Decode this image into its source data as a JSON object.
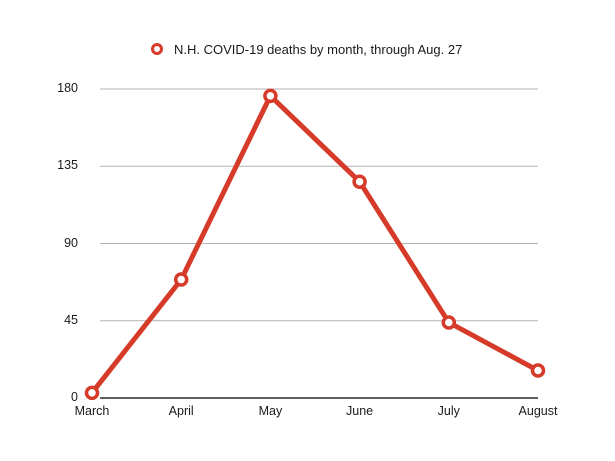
{
  "legend": {
    "label": "N.H. COVID-19 deaths by month, through Aug. 27",
    "color": "#d63b2a"
  },
  "y_axis": {
    "ticks": [
      "0",
      "45",
      "90",
      "135",
      "180"
    ]
  },
  "x_axis": {
    "ticks": [
      "March",
      "April",
      "May",
      "June",
      "July",
      "August"
    ]
  },
  "colors": {
    "line": "#d63b2a",
    "gridline": "#b3b3b3",
    "axis": "#2a2a2a"
  },
  "chart_data": {
    "type": "line",
    "title": "",
    "categories": [
      "March",
      "April",
      "May",
      "June",
      "July",
      "August"
    ],
    "series": [
      {
        "name": "N.H. COVID-19 deaths by month, through Aug. 27",
        "values": [
          3,
          69,
          176,
          126,
          44,
          16
        ],
        "color": "#d63b2a"
      }
    ],
    "xlabel": "",
    "ylabel": "",
    "ylim": [
      0,
      180
    ],
    "yticks": [
      0,
      45,
      90,
      135,
      180
    ],
    "grid": true,
    "legend_position": "top"
  }
}
